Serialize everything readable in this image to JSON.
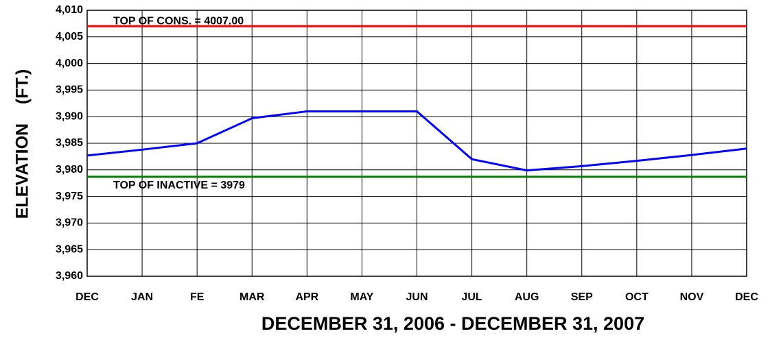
{
  "chart_data": {
    "type": "line",
    "y_label": "ELEVATION    (FT.)",
    "x_label": "DECEMBER 31, 2006 - DECEMBER 31, 2007",
    "categories": [
      "DEC",
      "JAN",
      "FE",
      "MAR",
      "APR",
      "MAY",
      "JUN",
      "JUL",
      "AUG",
      "SEP",
      "OCT",
      "NOV",
      "DEC"
    ],
    "series": [
      {
        "color": "#0000ff",
        "values": [
          3982.7,
          3983.8,
          3985,
          3989.7,
          3991,
          3991,
          3991,
          3982,
          3979.9,
          3980.7,
          3981.7,
          3982.8,
          3984
        ]
      }
    ],
    "reference_lines": [
      {
        "label": "TOP OF CONS. = 4007.00",
        "value": 4007,
        "color": "#ff0000"
      },
      {
        "label": "TOP OF INACTIVE = 3979",
        "value": 3978.7,
        "color": "#008000"
      }
    ],
    "ylim": [
      3960,
      4010
    ],
    "yticks": [
      {
        "value": 3960,
        "label": "3,960"
      },
      {
        "value": 3965,
        "label": "3,965"
      },
      {
        "value": 3970,
        "label": "3,970"
      },
      {
        "value": 3975,
        "label": "3,975"
      },
      {
        "value": 3980,
        "label": "3,980"
      },
      {
        "value": 3985,
        "label": "3,985"
      },
      {
        "value": 3990,
        "label": "3,990"
      },
      {
        "value": 3995,
        "label": "3,995"
      },
      {
        "value": 4000,
        "label": "4,000"
      },
      {
        "value": 4005,
        "label": "4,005"
      },
      {
        "value": 4010,
        "label": "4,010"
      }
    ],
    "grid": true
  }
}
